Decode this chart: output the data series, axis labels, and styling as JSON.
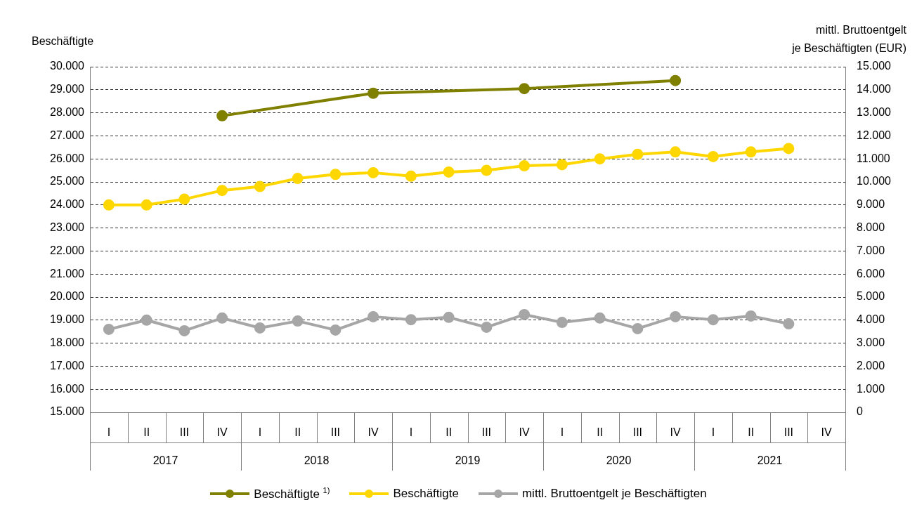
{
  "chart_data": {
    "type": "line",
    "ylabel": "Beschäftigte",
    "y2label": "mittl. Bruttoentgelt\nje Beschäftigten (EUR)",
    "categories": [
      "I",
      "II",
      "III",
      "IV",
      "I",
      "II",
      "III",
      "IV",
      "I",
      "II",
      "III",
      "IV",
      "I",
      "II",
      "III",
      "IV",
      "I",
      "II",
      "III",
      "IV"
    ],
    "annotations": [
      "2017",
      "2018",
      "2019",
      "2020",
      "2021"
    ],
    "series": [
      {
        "name": "Beschäftigte $^{1)}$",
        "color": "#808000",
        "values": [
          null,
          null,
          null,
          27870,
          null,
          null,
          null,
          28850,
          null,
          null,
          null,
          29050,
          null,
          null,
          null,
          29400,
          null,
          null,
          null,
          null
        ]
      },
      {
        "name": "Beschäftigte",
        "color": "#ffd700",
        "values": [
          24000,
          24000,
          24250,
          24630,
          24800,
          25150,
          25330,
          25400,
          25250,
          25430,
          25500,
          25700,
          25750,
          26000,
          26200,
          26300,
          26100,
          26300,
          26450,
          null
        ]
      },
      {
        "name": "mittl. Bruttoentgelt je Beschäftigten",
        "color": "#a6a6a6",
        "axis": "y2",
        "values": [
          3600,
          4000,
          3540,
          4090,
          3660,
          3960,
          3570,
          4150,
          4020,
          4120,
          3690,
          4240,
          3900,
          4090,
          3630,
          4150,
          4020,
          4180,
          3840,
          null
        ]
      }
    ],
    "ylim": [
      15000,
      30000
    ],
    "yticks": [
      {
        "value": 15000,
        "label": "15.000"
      },
      {
        "value": 16000,
        "label": "16.000"
      },
      {
        "value": 17000,
        "label": "17.000"
      },
      {
        "value": 18000,
        "label": "18.000"
      },
      {
        "value": 19000,
        "label": "19.000"
      },
      {
        "value": 20000,
        "label": "20.000"
      },
      {
        "value": 21000,
        "label": "21.000"
      },
      {
        "value": 22000,
        "label": "22.000"
      },
      {
        "value": 23000,
        "label": "23.000"
      },
      {
        "value": 24000,
        "label": "24.000"
      },
      {
        "value": 25000,
        "label": "25.000"
      },
      {
        "value": 26000,
        "label": "26.000"
      },
      {
        "value": 27000,
        "label": "27.000"
      },
      {
        "value": 28000,
        "label": "28.000"
      },
      {
        "value": 29000,
        "label": "29.000"
      },
      {
        "value": 30000,
        "label": "30.000"
      }
    ],
    "y2lim": [
      0,
      15000
    ],
    "y2ticks": [
      0,
      {
        "value": 1000,
        "label": "1.000"
      },
      {
        "value": 2000,
        "label": "2.000"
      },
      {
        "value": 3000,
        "label": "3.000"
      },
      {
        "value": 4000,
        "label": "4.000"
      },
      {
        "value": 5000,
        "label": "5.000"
      },
      {
        "value": 6000,
        "label": "6.000"
      },
      {
        "value": 7000,
        "label": "7.000"
      },
      {
        "value": 8000,
        "label": "8.000"
      },
      {
        "value": 9000,
        "label": "9.000"
      },
      {
        "value": 10000,
        "label": "10.000"
      },
      {
        "value": 11000,
        "label": "11.000"
      },
      {
        "value": 12000,
        "label": "12.000"
      },
      {
        "value": 13000,
        "label": "13.000"
      },
      {
        "value": 14000,
        "label": "14.000"
      },
      {
        "value": 15000,
        "label": "15.000"
      }
    ],
    "grid": "y",
    "legend": "bottom",
    "marker": "circle",
    "line_style": "solid"
  }
}
